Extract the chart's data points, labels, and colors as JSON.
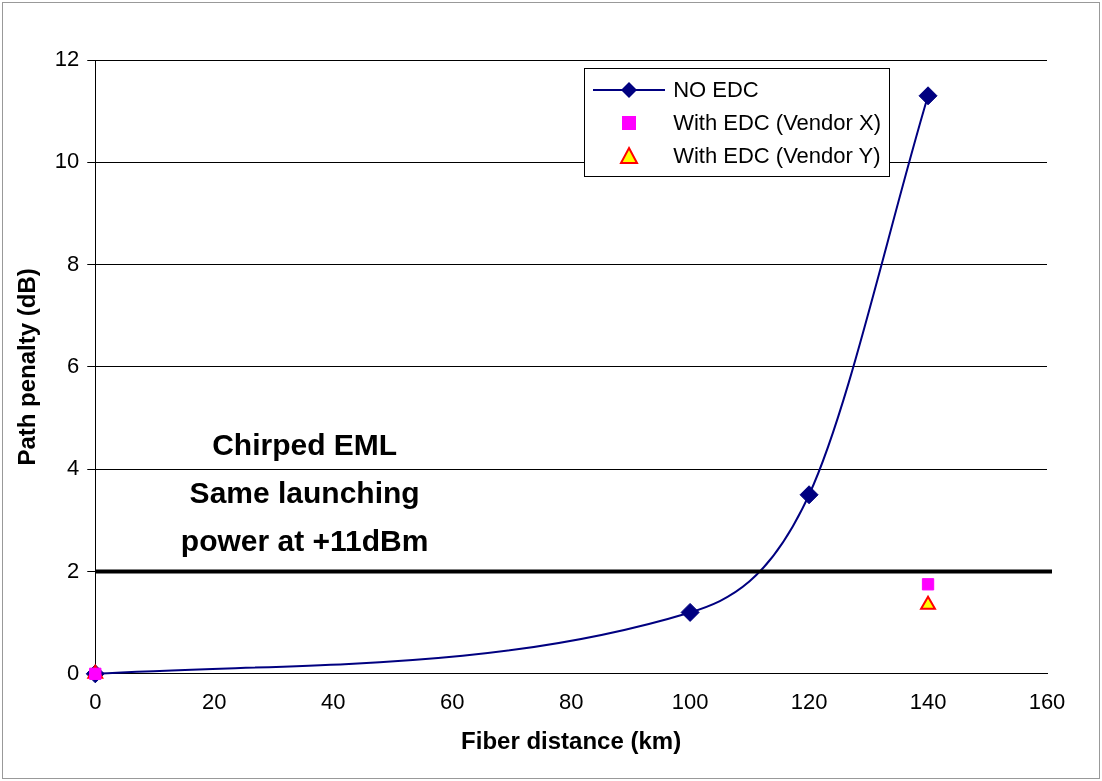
{
  "chart_data": {
    "type": "line",
    "xlabel": "Fiber distance (km)",
    "ylabel": "Path penalty (dB)",
    "xlim": [
      0,
      160
    ],
    "xticks": [
      0,
      20,
      40,
      60,
      80,
      100,
      120,
      140,
      160
    ],
    "ylim": [
      0,
      12
    ],
    "yticks": [
      0,
      2,
      4,
      6,
      8,
      10,
      12
    ],
    "grid": "y",
    "legend": "top right",
    "series": [
      {
        "name": "NO EDC",
        "color": "#000080",
        "marker": "diamond",
        "line_style": "solid",
        "x": [
          0,
          100,
          120,
          140
        ],
        "values": [
          0,
          1.2,
          3.5,
          11.3
        ]
      },
      {
        "name": "With EDC (Vendor X)",
        "type": "scatter",
        "color": "#ff00ff",
        "marker": "square",
        "x": [
          0,
          140
        ],
        "values": [
          0,
          1.75
        ]
      },
      {
        "name": "With EDC (Vendor Y)",
        "type": "scatter",
        "color": "#ffff00",
        "marker": "triangle",
        "x": [
          0,
          140
        ],
        "values": [
          0,
          1.35
        ]
      }
    ],
    "ref_lines": [
      {
        "axis": "y",
        "value": 2,
        "color": "#000000",
        "line_style": "solid"
      }
    ],
    "annotations": [
      "Chirped EML\nSame launching\npower at +11dBm"
    ]
  }
}
